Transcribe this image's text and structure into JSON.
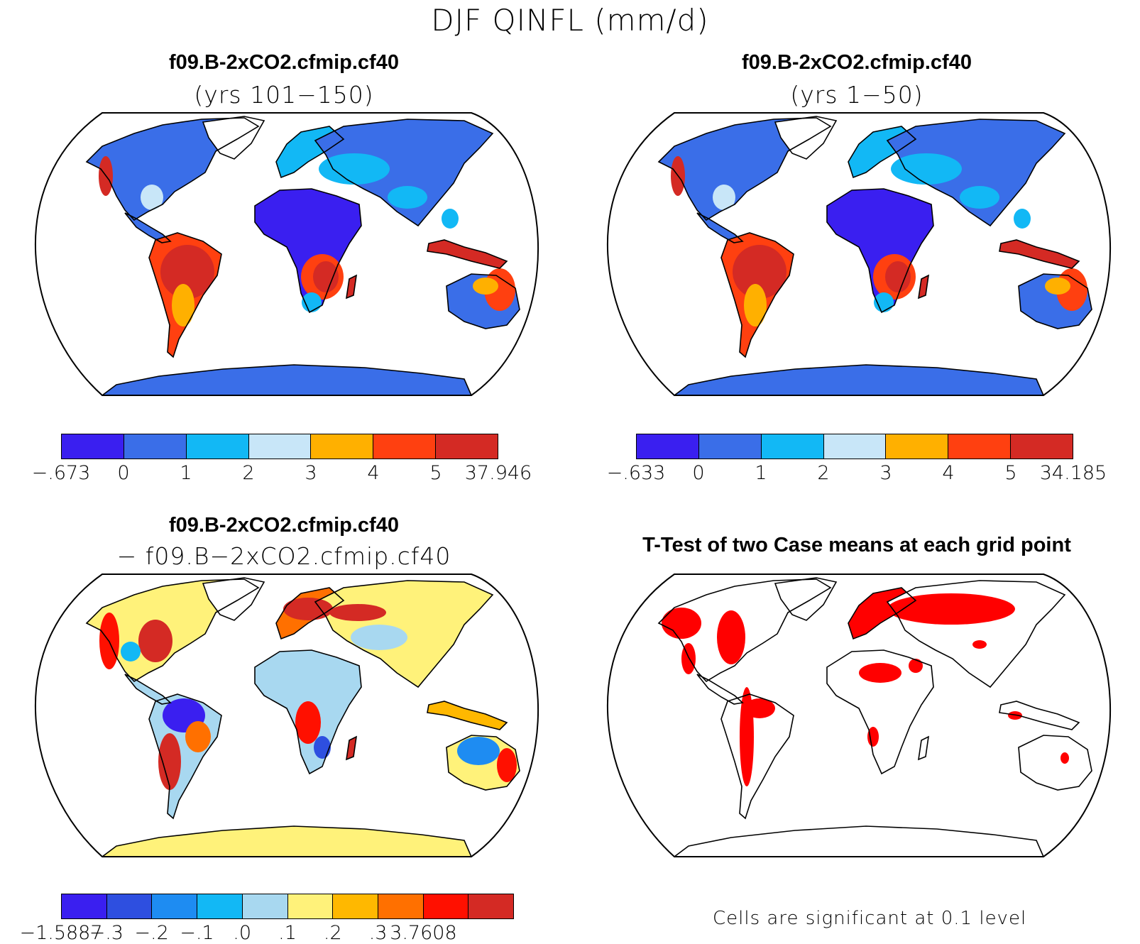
{
  "figure": {
    "title": "DJF QINFL (mm/d)"
  },
  "panels": [
    {
      "title": "f09.B-2xCO2.cfmip.cf40",
      "subtitle": "(yrs 101−150)",
      "colorbar": {
        "colors": [
          "#3a1ff0",
          "#3a6ee8",
          "#12b8f5",
          "#c8e6f8",
          "#ffb000",
          "#ff4010",
          "#d42a24"
        ],
        "labels": [
          "−.673",
          "0",
          "1",
          "2",
          "3",
          "4",
          "5",
          "37.946"
        ]
      }
    },
    {
      "title": "f09.B-2xCO2.cfmip.cf40",
      "subtitle": "(yrs 1−50)",
      "colorbar": {
        "colors": [
          "#3a1ff0",
          "#3a6ee8",
          "#12b8f5",
          "#c8e6f8",
          "#ffb000",
          "#ff4010",
          "#d42a24"
        ],
        "labels": [
          "−.633",
          "0",
          "1",
          "2",
          "3",
          "4",
          "5",
          "34.185"
        ]
      }
    },
    {
      "title": "f09.B-2xCO2.cfmip.cf40",
      "subtitle": "− f09.B−2xCO2.cfmip.cf40",
      "colorbar": {
        "colors": [
          "#3a1ff0",
          "#2e4fe0",
          "#1e8cf2",
          "#12b8f5",
          "#a8d8f0",
          "#fff27a",
          "#ffb800",
          "#ff7000",
          "#ff1000",
          "#d42a24"
        ],
        "labels": [
          "−1.5887",
          "−.3",
          "−.2",
          "−.1",
          ".0",
          ".1",
          ".2",
          ".3",
          "3.7608"
        ]
      }
    },
    {
      "title": "T-Test of two Case means at each grid point",
      "note": "Cells are significant at 0.1 level",
      "significant_color": "#ff0000"
    }
  ]
}
